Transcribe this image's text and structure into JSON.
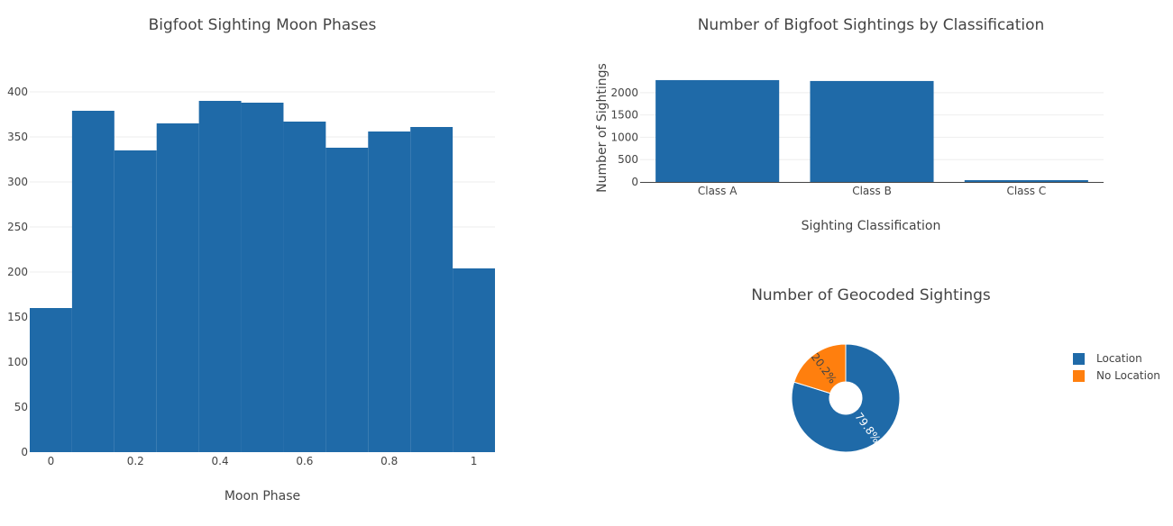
{
  "colors": {
    "blue": "#1f6aa8",
    "orange": "#ff7f0e",
    "zero_line": "#444444"
  },
  "chart_data": [
    {
      "type": "bar",
      "subtype": "histogram",
      "title": "Bigfoot Sighting Moon Phases",
      "xlabel": "Moon Phase",
      "ylabel": "",
      "bins": [
        {
          "start": -0.05,
          "end": 0.05,
          "value": 160
        },
        {
          "start": 0.05,
          "end": 0.15,
          "value": 379
        },
        {
          "start": 0.15,
          "end": 0.25,
          "value": 335
        },
        {
          "start": 0.25,
          "end": 0.35,
          "value": 365
        },
        {
          "start": 0.35,
          "end": 0.45,
          "value": 390
        },
        {
          "start": 0.45,
          "end": 0.55,
          "value": 388
        },
        {
          "start": 0.55,
          "end": 0.65,
          "value": 367
        },
        {
          "start": 0.65,
          "end": 0.75,
          "value": 338
        },
        {
          "start": 0.75,
          "end": 0.85,
          "value": 356
        },
        {
          "start": 0.85,
          "end": 0.95,
          "value": 361
        },
        {
          "start": 0.95,
          "end": 1.05,
          "value": 204
        }
      ],
      "xlim": [
        -0.05,
        1.05
      ],
      "ylim": [
        0,
        420
      ],
      "xticks": [
        0,
        0.2,
        0.4,
        0.6,
        0.8,
        1
      ],
      "xtick_labels": [
        "0",
        "0.2",
        "0.4",
        "0.6",
        "0.8",
        "1"
      ],
      "yticks": [
        0,
        50,
        100,
        150,
        200,
        250,
        300,
        350,
        400
      ],
      "ytick_labels": [
        "0",
        "50",
        "100",
        "150",
        "200",
        "250",
        "300",
        "350",
        "400"
      ],
      "grid": true
    },
    {
      "type": "bar",
      "title": "Number of Bigfoot Sightings by Classification",
      "xlabel": "Sighting Classification",
      "ylabel": "Number of Sightings",
      "categories": [
        "Class A",
        "Class B",
        "Class C"
      ],
      "values": [
        2280,
        2260,
        40
      ],
      "ylim": [
        0,
        2420
      ],
      "yticks": [
        0,
        500,
        1000,
        1500,
        2000
      ],
      "ytick_labels": [
        "0",
        "500",
        "1000",
        "1500",
        "2000"
      ],
      "grid": true
    },
    {
      "type": "pie",
      "subtype": "donut",
      "title": "Number of Geocoded Sightings",
      "labels": [
        "Location",
        "No Location"
      ],
      "values": [
        79.8,
        20.2
      ],
      "slice_labels": [
        "79.8%",
        "20.2%"
      ],
      "legend_placement": "right"
    }
  ]
}
